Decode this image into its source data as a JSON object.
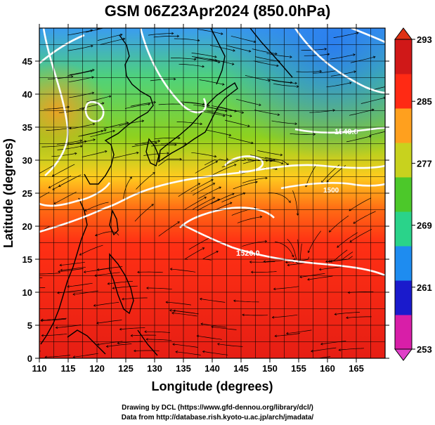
{
  "title": "GSM 06Z23Apr2024 (850.0hPa)",
  "axes": {
    "xlabel": "Longitude (degrees)",
    "ylabel": "Latitude (degrees)",
    "xlim": [
      110,
      170
    ],
    "ylim": [
      0,
      50
    ],
    "xticks": [
      "110",
      "115",
      "120",
      "125",
      "130",
      "135",
      "140",
      "145",
      "150",
      "155",
      "160",
      "165"
    ],
    "yticks": [
      "0",
      "5",
      "10",
      "15",
      "20",
      "25",
      "30",
      "35",
      "40",
      "45"
    ]
  },
  "colorbar": {
    "labels": [
      "293",
      "285",
      "277",
      "269",
      "261",
      "253"
    ],
    "range": [
      253,
      293
    ],
    "colors": [
      "#d81ea8",
      "#1a1acc",
      "#1e8cf0",
      "#2ad38a",
      "#4cc82a",
      "#c8d21e",
      "#ffa01e",
      "#ff2a14",
      "#d01818"
    ]
  },
  "contours": {
    "labels": [
      "1540.0",
      "1520.0",
      "1500"
    ],
    "color": "#ffffff"
  },
  "credits": {
    "line1": "Drawing by DCL (https://www.gfd-dennou.org/library/dcl/)",
    "line2": "Data from http://database.rish.kyoto-u.ac.jp/arch/jmadata/"
  }
}
